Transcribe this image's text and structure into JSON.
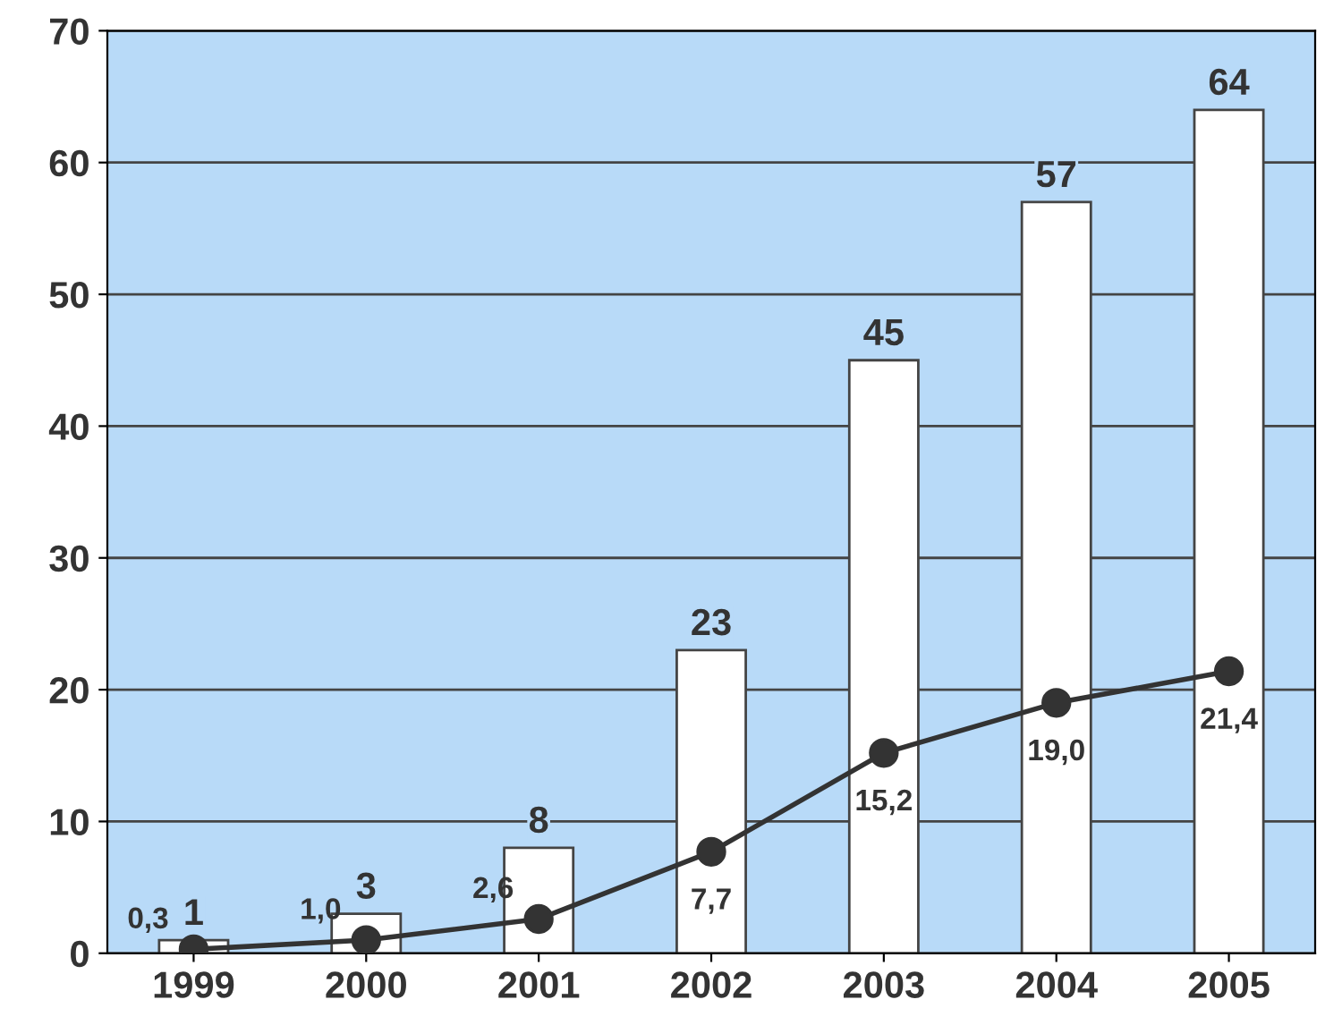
{
  "chart_data": {
    "type": "bar",
    "categories": [
      "1999",
      "2000",
      "2001",
      "2002",
      "2003",
      "2004",
      "2005"
    ],
    "series": [
      {
        "color": "#ffffff",
        "values": [
          1,
          3,
          8,
          23,
          45,
          57,
          64
        ],
        "value_labels": [
          "1",
          "3",
          "8",
          "23",
          "45",
          "57",
          "64"
        ]
      },
      {
        "type": "line",
        "color": "#333333",
        "values": [
          0.3,
          1.0,
          2.6,
          7.7,
          15.2,
          19.0,
          21.4
        ],
        "value_labels": [
          "0,3",
          "1,0",
          "2,6",
          "7,7",
          "15,2",
          "19,0",
          "21,4"
        ],
        "marker": "circle",
        "line_style": "solid"
      }
    ],
    "ylim": [
      0,
      70
    ],
    "yticks": [
      0,
      10,
      20,
      30,
      40,
      50,
      60,
      70
    ],
    "grid": "y"
  }
}
